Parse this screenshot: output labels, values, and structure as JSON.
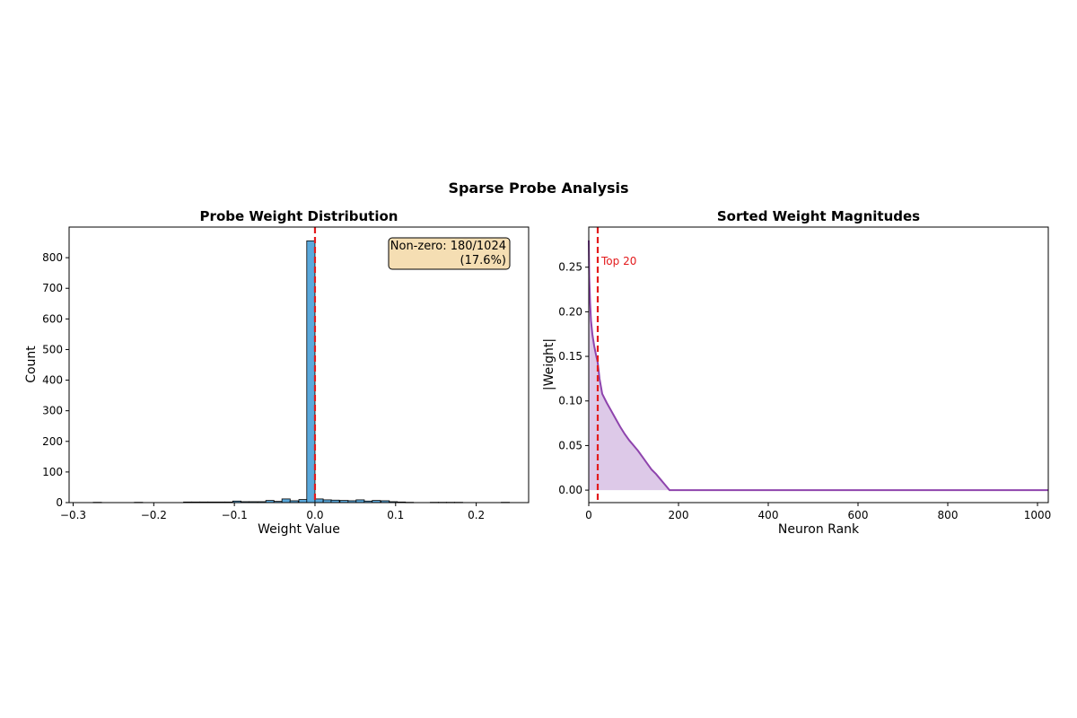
{
  "figure": {
    "suptitle": "Sparse Probe Analysis"
  },
  "colors": {
    "bar_fill": "#5aa9dc",
    "bar_edge": "#000000",
    "ref_line": "#e31a1c",
    "curve": "#8e44ad",
    "curve_fill": "#d9c3e6",
    "anno_box_fill": "#f5deb3",
    "top_label": "#e31a1c"
  },
  "chart_data": [
    {
      "type": "bar",
      "title": "Probe Weight Distribution",
      "xlabel": "Weight Value",
      "ylabel": "Count",
      "xlim": [
        -0.305,
        0.265
      ],
      "ylim": [
        0,
        900
      ],
      "xticks": [
        -0.3,
        -0.2,
        -0.1,
        0.0,
        0.1,
        0.2
      ],
      "xtick_labels": [
        "−0.3",
        "−0.2",
        "−0.1",
        "0.0",
        "0.1",
        "0.2"
      ],
      "yticks": [
        0,
        100,
        200,
        300,
        400,
        500,
        600,
        700,
        800
      ],
      "ytick_labels": [
        "0",
        "100",
        "200",
        "300",
        "400",
        "500",
        "600",
        "700",
        "800"
      ],
      "bin_width": 0.0102,
      "bins": [
        {
          "x": -0.275,
          "count": 1
        },
        {
          "x": -0.224,
          "count": 1
        },
        {
          "x": -0.163,
          "count": 2
        },
        {
          "x": -0.153,
          "count": 2
        },
        {
          "x": -0.143,
          "count": 2
        },
        {
          "x": -0.133,
          "count": 2
        },
        {
          "x": -0.122,
          "count": 2
        },
        {
          "x": -0.112,
          "count": 2
        },
        {
          "x": -0.102,
          "count": 5
        },
        {
          "x": -0.092,
          "count": 3
        },
        {
          "x": -0.082,
          "count": 3
        },
        {
          "x": -0.071,
          "count": 3
        },
        {
          "x": -0.061,
          "count": 7
        },
        {
          "x": -0.051,
          "count": 4
        },
        {
          "x": -0.041,
          "count": 12
        },
        {
          "x": -0.031,
          "count": 6
        },
        {
          "x": -0.02,
          "count": 10
        },
        {
          "x": -0.0102,
          "count": 855
        },
        {
          "x": 0.0,
          "count": 12
        },
        {
          "x": 0.0102,
          "count": 9
        },
        {
          "x": 0.02,
          "count": 8
        },
        {
          "x": 0.031,
          "count": 7
        },
        {
          "x": 0.041,
          "count": 6
        },
        {
          "x": 0.051,
          "count": 9
        },
        {
          "x": 0.061,
          "count": 5
        },
        {
          "x": 0.071,
          "count": 7
        },
        {
          "x": 0.082,
          "count": 6
        },
        {
          "x": 0.092,
          "count": 3
        },
        {
          "x": 0.102,
          "count": 2
        },
        {
          "x": 0.112,
          "count": 1
        },
        {
          "x": 0.143,
          "count": 1
        },
        {
          "x": 0.153,
          "count": 1
        },
        {
          "x": 0.163,
          "count": 1
        },
        {
          "x": 0.173,
          "count": 1
        },
        {
          "x": 0.231,
          "count": 1
        }
      ],
      "reference_line": {
        "x": 0.0,
        "style": "dashed"
      },
      "annotation": {
        "line1": "Non-zero: 180/1024",
        "line2": "(17.6%)",
        "placement": "top-right"
      },
      "grid": false
    },
    {
      "type": "area",
      "title": "Sorted Weight Magnitudes",
      "xlabel": "Neuron Rank",
      "ylabel": "|Weight|",
      "xlim": [
        0,
        1024
      ],
      "ylim": [
        -0.014,
        0.295
      ],
      "xticks": [
        0,
        200,
        400,
        600,
        800,
        1000
      ],
      "xtick_labels": [
        "0",
        "200",
        "400",
        "600",
        "800",
        "1000"
      ],
      "yticks": [
        0.0,
        0.05,
        0.1,
        0.15,
        0.2,
        0.25
      ],
      "ytick_labels": [
        "0.00",
        "0.05",
        "0.10",
        "0.15",
        "0.20",
        "0.25"
      ],
      "series": [
        {
          "x": [
            0,
            1,
            3,
            5,
            8,
            12,
            16,
            20,
            24,
            30,
            40,
            50,
            60,
            70,
            80,
            90,
            100,
            110,
            120,
            130,
            140,
            150,
            160,
            170,
            175,
            180,
            200,
            400,
            600,
            800,
            1024
          ],
          "y": [
            0.28,
            0.24,
            0.21,
            0.19,
            0.175,
            0.162,
            0.152,
            0.143,
            0.125,
            0.108,
            0.098,
            0.089,
            0.08,
            0.071,
            0.063,
            0.056,
            0.05,
            0.044,
            0.037,
            0.03,
            0.023,
            0.018,
            0.012,
            0.006,
            0.003,
            0.0,
            0.0,
            0.0,
            0.0,
            0.0,
            0.0
          ]
        }
      ],
      "reference_line": {
        "x": 20,
        "style": "dashed",
        "label": "Top 20"
      },
      "grid": false
    }
  ]
}
